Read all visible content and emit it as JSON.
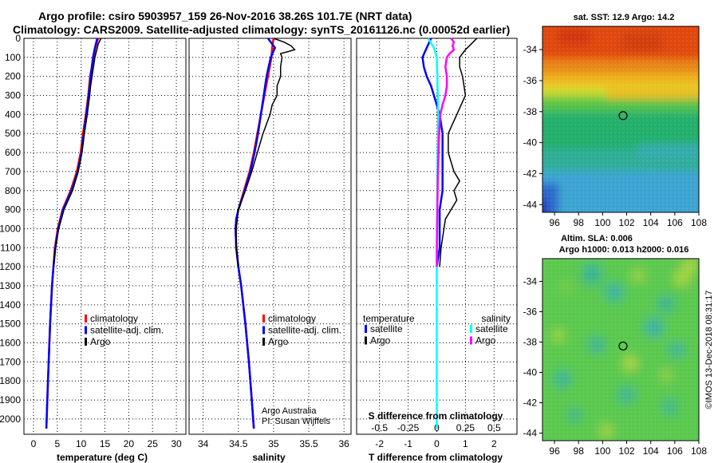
{
  "header": {
    "line1": "Argo profile: csiro 5903957_159 26-Nov-2016 38.26S 101.7E (NRT data)",
    "line2": "Climatology: CARS2009. Satellite-adjusted climatology: synTS_20161126.nc (0.00052d earlier)"
  },
  "colors": {
    "climatology": "#ff0000",
    "satellite": "#0000ff",
    "argo": "#000000",
    "sal_satellite": "#00ffff",
    "sal_argo": "#ff00ff"
  },
  "credits": {
    "line1": "Argo Australia",
    "line2": "PI: Susan Wijffels",
    "imos": "©IMOS 13-Dec-2018 08:31:17"
  },
  "chart_data": [
    {
      "id": "temperature",
      "type": "line",
      "xlabel": "temperature (deg C)",
      "xlim": [
        -2,
        32
      ],
      "xticks": [
        0,
        5,
        10,
        15,
        20,
        25,
        30
      ],
      "xticklabels": [
        "0",
        "5",
        "10",
        "15",
        "20",
        "25",
        "30"
      ],
      "ylabel": "depth",
      "ylim": [
        0,
        2080
      ],
      "yticks": [
        0,
        100,
        200,
        300,
        400,
        500,
        600,
        700,
        800,
        900,
        1000,
        1100,
        1200,
        1300,
        1400,
        1500,
        1600,
        1700,
        1800,
        1900,
        2000
      ],
      "grid": true,
      "legend": [
        {
          "label": "climatology",
          "color": "#ff0000"
        },
        {
          "label": "satellite-adj. clim.",
          "color": "#0000ff"
        },
        {
          "label": "Argo",
          "color": "#000000"
        }
      ],
      "series": [
        {
          "name": "climatology",
          "color": "#ff0000",
          "depth": [
            0,
            50,
            100,
            200,
            300,
            400,
            500,
            600,
            700,
            800,
            900,
            1000,
            1100,
            1200,
            1300,
            1500,
            1700,
            1900,
            2050
          ],
          "values": [
            13.6,
            13.0,
            12.6,
            11.9,
            11.5,
            11.0,
            10.4,
            9.9,
            9.1,
            7.8,
            6.1,
            5.1,
            4.5,
            4.2,
            3.9,
            3.5,
            3.2,
            2.9,
            2.7
          ]
        },
        {
          "name": "satellite-adj. clim.",
          "color": "#0000ff",
          "depth": [
            0,
            50,
            100,
            200,
            300,
            400,
            500,
            600,
            700,
            800,
            900,
            1000,
            1100,
            1200,
            1300,
            1500,
            1700,
            1900,
            2050
          ],
          "values": [
            13.4,
            12.9,
            12.5,
            12.0,
            11.6,
            11.1,
            10.6,
            10.1,
            9.3,
            8.0,
            6.2,
            5.2,
            4.6,
            4.2,
            3.9,
            3.5,
            3.2,
            2.9,
            2.7
          ]
        },
        {
          "name": "Argo",
          "color": "#000000",
          "depth": [
            0,
            30,
            60,
            100,
            150,
            200,
            250,
            300,
            400,
            500,
            600,
            700,
            800,
            900,
            1000,
            1100,
            1200
          ],
          "values": [
            14.2,
            13.6,
            13.3,
            12.9,
            12.6,
            12.3,
            12.0,
            11.8,
            11.3,
            10.7,
            10.2,
            9.4,
            8.2,
            6.4,
            5.3,
            4.6,
            4.2
          ]
        }
      ]
    },
    {
      "id": "salinity",
      "type": "line",
      "xlabel": "salinity",
      "xlim": [
        33.8,
        36.1
      ],
      "xticks": [
        34,
        34.5,
        35,
        35.5,
        36
      ],
      "xticklabels": [
        "34",
        "34.5",
        "35",
        "35.5",
        "36"
      ],
      "ylim": [
        0,
        2080
      ],
      "grid": true,
      "legend": [
        {
          "label": "climatology",
          "color": "#ff0000"
        },
        {
          "label": "satellite-adj. clim.",
          "color": "#0000ff"
        },
        {
          "label": "Argo",
          "color": "#000000"
        }
      ],
      "series": [
        {
          "name": "climatology",
          "color": "#ff0000",
          "depth": [
            0,
            50,
            100,
            200,
            300,
            400,
            500,
            600,
            700,
            800,
            900,
            950,
            1000,
            1100,
            1200,
            1300,
            1500,
            1700,
            1900,
            2050
          ],
          "values": [
            35.0,
            34.98,
            34.97,
            34.92,
            34.87,
            34.82,
            34.77,
            34.72,
            34.66,
            34.58,
            34.5,
            34.47,
            34.46,
            34.47,
            34.5,
            34.54,
            34.6,
            34.65,
            34.69,
            34.72
          ]
        },
        {
          "name": "satellite-adj. clim.",
          "color": "#0000ff",
          "depth": [
            0,
            50,
            100,
            200,
            300,
            400,
            500,
            600,
            700,
            800,
            900,
            950,
            1000,
            1100,
            1200,
            1300,
            1500,
            1700,
            1900,
            2050
          ],
          "values": [
            34.92,
            35.02,
            34.96,
            34.9,
            34.86,
            34.82,
            34.78,
            34.73,
            34.67,
            34.59,
            34.5,
            34.47,
            34.46,
            34.47,
            34.5,
            34.54,
            34.6,
            34.65,
            34.69,
            34.72
          ]
        },
        {
          "name": "Argo",
          "color": "#000000",
          "depth": [
            0,
            20,
            40,
            60,
            80,
            100,
            150,
            200,
            250,
            300,
            350,
            400,
            500,
            600,
            700,
            800,
            900,
            1000,
            1100,
            1200
          ],
          "values": [
            35.0,
            35.15,
            35.25,
            35.3,
            35.1,
            35.12,
            35.1,
            35.1,
            35.05,
            35.05,
            34.98,
            34.95,
            34.85,
            34.77,
            34.69,
            34.6,
            34.5,
            34.47,
            34.47,
            34.5
          ]
        }
      ]
    },
    {
      "id": "difference",
      "type": "line",
      "xlabel": "T difference from climatology",
      "xlabel2": "S difference from climatology",
      "xlim": [
        -2.8,
        2.8
      ],
      "xticks": [
        -2,
        -1,
        0,
        1,
        2
      ],
      "xticklabels": [
        "-2",
        "-1",
        "0",
        "1",
        "2"
      ],
      "sticks": [
        -0.5,
        -0.25,
        0,
        0.25,
        0.5
      ],
      "sticklabels": [
        "-0.5",
        "-0.25",
        "0",
        "0.25",
        "0.5"
      ],
      "ylim": [
        0,
        2080
      ],
      "grid": true,
      "legend_left_title": "temperature",
      "legend_right_title": "salinity",
      "legend": [
        {
          "label": "satellite",
          "color": "#0000ff",
          "side": "left"
        },
        {
          "label": "Argo",
          "color": "#000000",
          "side": "left"
        },
        {
          "label": "satellite",
          "color": "#00ffff",
          "side": "right"
        },
        {
          "label": "Argo",
          "color": "#ff00ff",
          "side": "right"
        }
      ],
      "series": [
        {
          "name": "temperature satellite",
          "color": "#0000ff",
          "depth": [
            0,
            50,
            100,
            150,
            200,
            250,
            300,
            400,
            500,
            600,
            700,
            800,
            900,
            1000,
            1100,
            1200
          ],
          "values": [
            -0.2,
            -0.35,
            -0.5,
            -0.45,
            -0.35,
            -0.2,
            -0.1,
            0.1,
            0.2,
            0.2,
            0.2,
            0.2,
            0.1,
            0.1,
            0.1,
            0.0
          ]
        },
        {
          "name": "temperature Argo",
          "color": "#000000",
          "depth": [
            0,
            30,
            60,
            100,
            150,
            200,
            300,
            400,
            500,
            600,
            700,
            750,
            800,
            850,
            900,
            950,
            1000,
            1050,
            1100,
            1200
          ],
          "values": [
            1.4,
            1.2,
            1.0,
            0.8,
            0.8,
            0.9,
            1.0,
            0.7,
            0.4,
            0.4,
            0.6,
            0.8,
            0.6,
            0.7,
            0.5,
            0.3,
            0.25,
            0.2,
            0.15,
            0.1
          ]
        },
        {
          "name": "salinity satellite",
          "color": "#00ffff",
          "depth": [
            0,
            50,
            100,
            200,
            400,
            600,
            800,
            1000,
            1200,
            1400,
            1600,
            1800,
            2050
          ],
          "values": [
            -0.3,
            -0.1,
            0.0,
            0.02,
            0.05,
            0.03,
            0.02,
            0.01,
            0.0,
            0.0,
            0.0,
            0.0,
            0.0
          ]
        },
        {
          "name": "salinity Argo",
          "color": "#ff00ff",
          "depth": [
            0,
            20,
            40,
            60,
            80,
            100,
            150,
            200,
            250,
            300,
            350,
            400,
            500,
            700,
            900,
            1100,
            1200
          ],
          "values": [
            0.5,
            0.6,
            0.55,
            0.6,
            0.45,
            0.35,
            0.3,
            0.35,
            0.35,
            0.3,
            0.2,
            0.12,
            0.08,
            0.04,
            0.02,
            0.0,
            0.0
          ]
        }
      ]
    },
    {
      "id": "sst_map",
      "type": "heatmap",
      "title": "sat. SST: 12.9 Argo: 14.2",
      "xlim": [
        95,
        108
      ],
      "ylim": [
        -44.5,
        -32.5
      ],
      "xticks": [
        96,
        98,
        100,
        102,
        104,
        106,
        108
      ],
      "yticks": [
        -34,
        -36,
        -38,
        -40,
        -42,
        -44
      ],
      "marker": {
        "lon": 101.7,
        "lat": -38.26
      }
    },
    {
      "id": "sla_map",
      "type": "heatmap",
      "title": "Altim. SLA: 0.006",
      "subtitle": "Argo h1000: 0.013 h2000: 0.016",
      "xlim": [
        95,
        108
      ],
      "ylim": [
        -44.5,
        -32.5
      ],
      "xticks": [
        96,
        98,
        100,
        102,
        104,
        106,
        108
      ],
      "yticks": [
        -34,
        -36,
        -38,
        -40,
        -42,
        -44
      ],
      "marker": {
        "lon": 101.7,
        "lat": -38.26
      }
    }
  ]
}
